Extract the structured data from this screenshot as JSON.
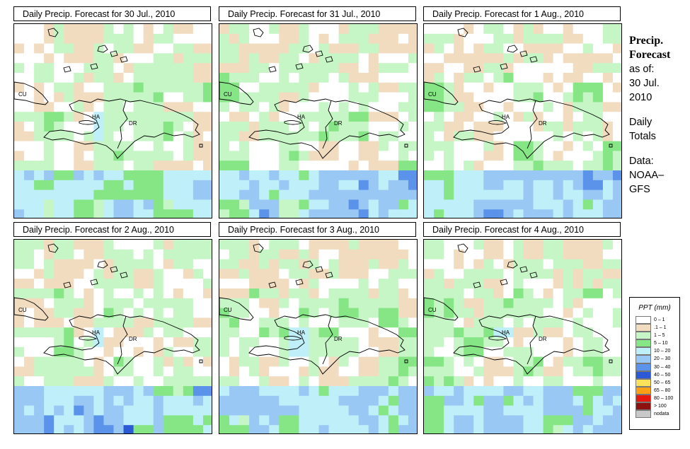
{
  "panels": [
    {
      "title": "Daily Precip. Forecast for  30 Jul., 2010"
    },
    {
      "title": "Daily Precip. Forecast for  31 Jul., 2010"
    },
    {
      "title": "Daily Precip. Forecast for  1 Aug., 2010"
    },
    {
      "title": "Daily Precip. Forecast for  2 Aug., 2010"
    },
    {
      "title": "Daily Precip. Forecast for  3 Aug., 2010"
    },
    {
      "title": "Daily Precip. Forecast for  4 Aug., 2010"
    }
  ],
  "map_labels": {
    "cuba": "CU",
    "haiti": "HA",
    "dominican_republic": "DR"
  },
  "sidebar": {
    "title_line1": "Precip.",
    "title_line2": "Forecast",
    "asof_label": "as of:",
    "asof_day": "30 Jul.",
    "asof_year": "2010",
    "totals_line1": "Daily",
    "totals_line2": "Totals",
    "data_line1": "Data:",
    "data_line2": "NOAA–",
    "data_line3": "GFS"
  },
  "legend": {
    "title": "PPT (mm)",
    "items": [
      {
        "label": "0 – 1",
        "color": "#ffffff"
      },
      {
        "label": ".1 – 1",
        "color": "#f2dcc0"
      },
      {
        "label": "1 – 5",
        "color": "#c6f5c6"
      },
      {
        "label": "5 – 10",
        "color": "#86e686"
      },
      {
        "label": "10 – 20",
        "color": "#bfeff8"
      },
      {
        "label": "20 – 30",
        "color": "#99c8f5"
      },
      {
        "label": "30 – 40",
        "color": "#5b93ea"
      },
      {
        "label": "40 – 50",
        "color": "#2c59d6"
      },
      {
        "label": "50 – 65",
        "color": "#fce15a"
      },
      {
        "label": "65 – 80",
        "color": "#fda015"
      },
      {
        "label": "80 – 100",
        "color": "#e6190f"
      },
      {
        "label": "> 100",
        "color": "#8c1111"
      },
      {
        "label": "nodata",
        "color": "#c8c8c8"
      }
    ]
  }
}
